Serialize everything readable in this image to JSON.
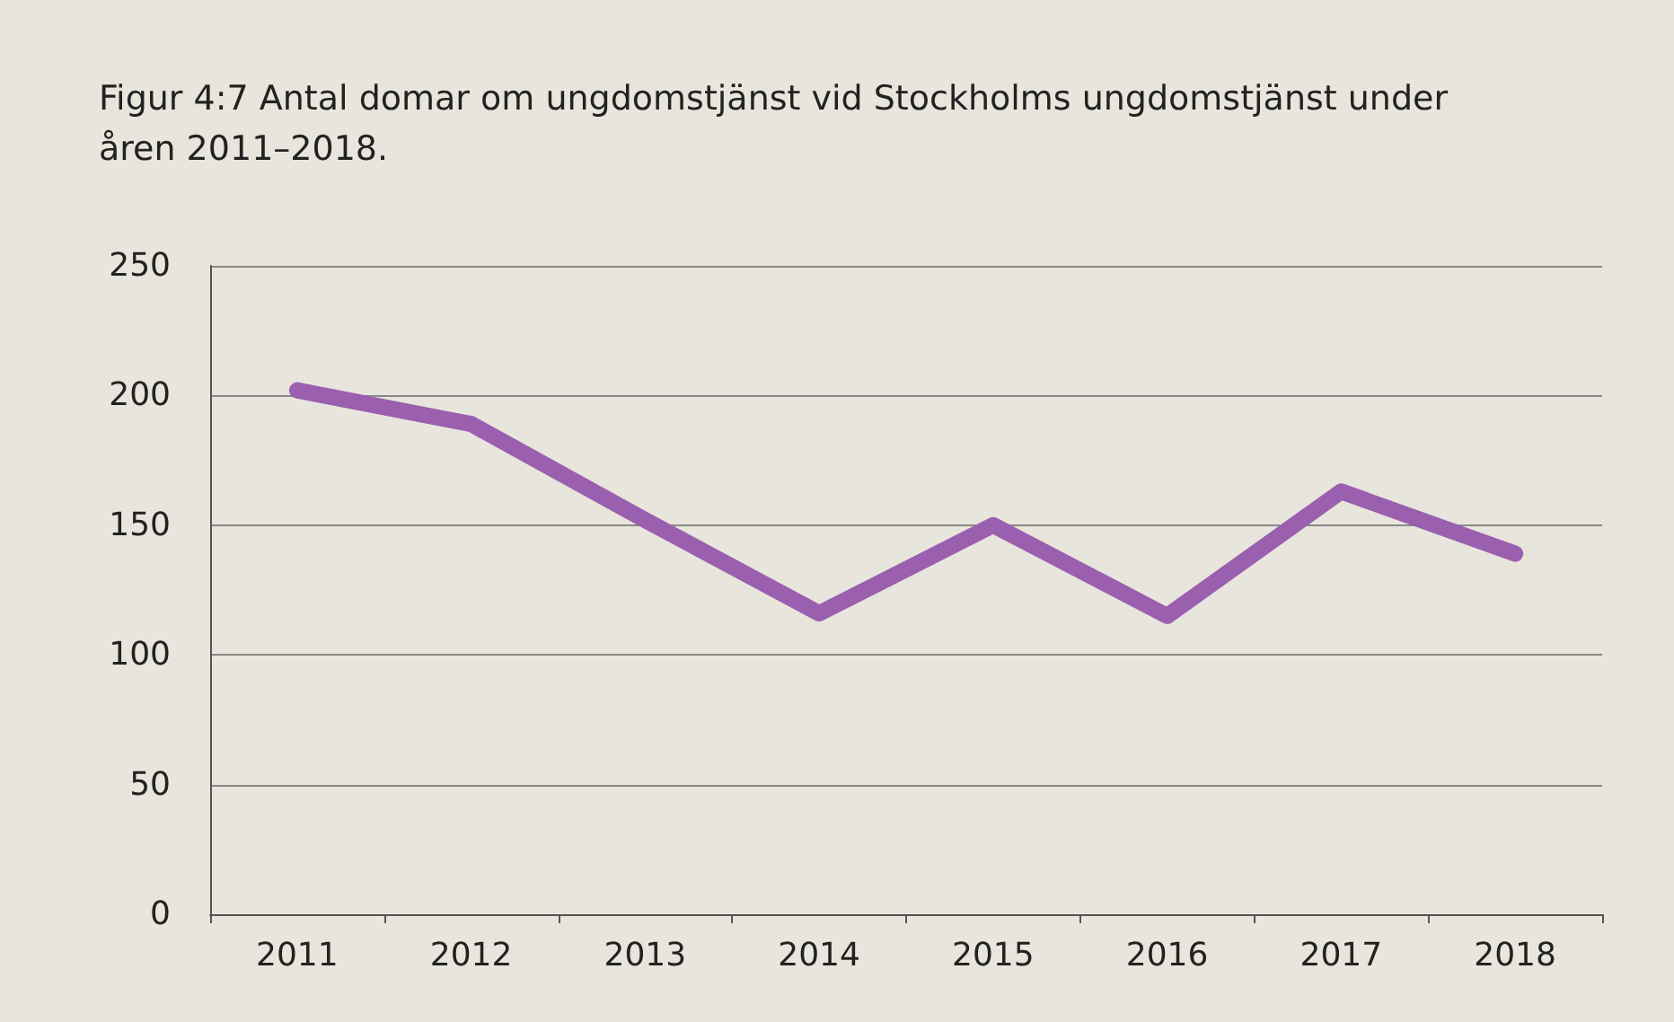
{
  "chart_data": {
    "type": "line",
    "title": "Figur 4:7 Antal domar om ungdomstjänst vid Stockholms ungdomstjänst under åren 2011–2018.",
    "categories": [
      "2011",
      "2012",
      "2013",
      "2014",
      "2015",
      "2016",
      "2017",
      "2018"
    ],
    "series": [
      {
        "color": "#9a5fae",
        "values": [
          202,
          189,
          152,
          116,
          150,
          115,
          163,
          139
        ]
      }
    ],
    "ylim": [
      0,
      250
    ],
    "yticks": [
      0,
      50,
      100,
      150,
      200,
      250
    ],
    "grid": "y",
    "line_style": "solid"
  }
}
